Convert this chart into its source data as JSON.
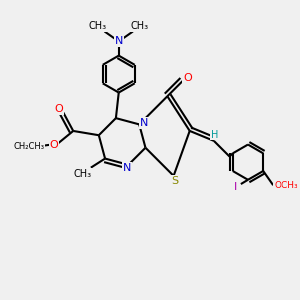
{
  "background_color": "#f0f0f0",
  "bond_color": "#000000",
  "atom_colors": {
    "N": "#0000cc",
    "O": "#ff0000",
    "S": "#888800",
    "I": "#aa00aa",
    "H": "#009999",
    "C": "#000000"
  },
  "figsize": [
    3.0,
    3.0
  ],
  "dpi": 100,
  "xlim": [
    0,
    10
  ],
  "ylim": [
    0,
    10
  ]
}
